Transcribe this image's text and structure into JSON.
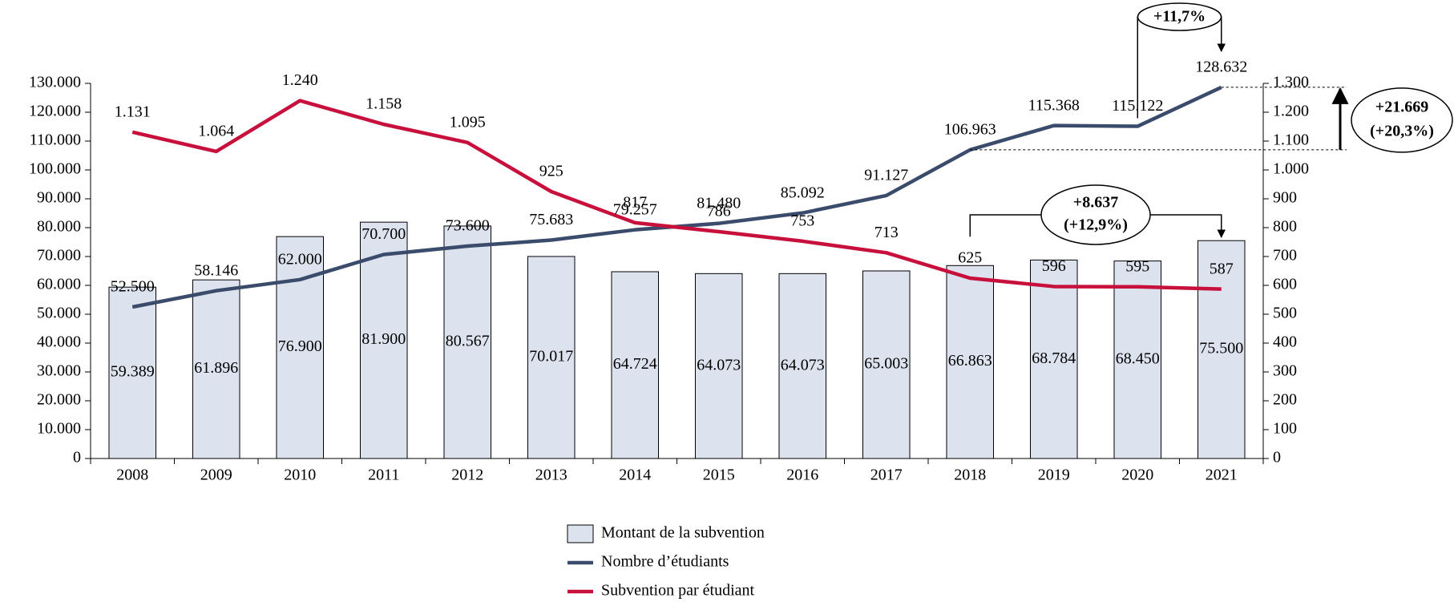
{
  "chart_data": {
    "type": "combo",
    "categories": [
      "2008",
      "2009",
      "2010",
      "2011",
      "2012",
      "2013",
      "2014",
      "2015",
      "2016",
      "2017",
      "2018",
      "2019",
      "2020",
      "2021"
    ],
    "series": [
      {
        "name": "Montant de la subvention",
        "type": "bar",
        "axis": "y",
        "color": "#dde3ee",
        "values": [
          59389,
          61896,
          76900,
          81900,
          80567,
          70017,
          64724,
          64073,
          64073,
          65003,
          66863,
          68784,
          68450,
          75500
        ],
        "value_labels": [
          "59.389",
          "61.896",
          "76.900",
          "81.900",
          "80.567",
          "70.017",
          "64.724",
          "64.073",
          "64.073",
          "65.003",
          "66.863",
          "68.784",
          "68.450",
          "75.500"
        ]
      },
      {
        "name": "Nombre d’étudiants",
        "type": "line",
        "axis": "y",
        "color": "#3b4b6b",
        "values": [
          52500,
          58146,
          62000,
          70700,
          73600,
          75683,
          79257,
          81480,
          85092,
          91127,
          106963,
          115368,
          115122,
          128632
        ],
        "value_labels": [
          "52.500",
          "58.146",
          "62.000",
          "70.700",
          "73.600",
          "75.683",
          "79.257",
          "81.480",
          "85.092",
          "91.127",
          "106.963",
          "115.368",
          "115.122",
          "128.632"
        ]
      },
      {
        "name": "Subvention par étudiant",
        "type": "line",
        "axis": "y2",
        "color": "#c8103d",
        "values": [
          1131,
          1064,
          1240,
          1158,
          1095,
          925,
          817,
          786,
          753,
          713,
          625,
          596,
          595,
          587
        ],
        "value_labels": [
          "1.131",
          "1.064",
          "1.240",
          "1.158",
          "1.095",
          "925",
          "817",
          "786",
          "753",
          "713",
          "625",
          "596",
          "595",
          "587"
        ]
      }
    ],
    "ylim": [
      0,
      130000
    ],
    "yticks": [
      0,
      {
        "value": 10000,
        "label": "10.000"
      },
      {
        "value": 20000,
        "label": "20.000"
      },
      {
        "value": 30000,
        "label": "30.000"
      },
      {
        "value": 40000,
        "label": "40.000"
      },
      {
        "value": 50000,
        "label": "50.000"
      },
      {
        "value": 60000,
        "label": "60.000"
      },
      {
        "value": 70000,
        "label": "70.000"
      },
      {
        "value": 80000,
        "label": "80.000"
      },
      {
        "value": 90000,
        "label": "90.000"
      },
      {
        "value": 100000,
        "label": "100.000"
      },
      {
        "value": 110000,
        "label": "110.000"
      },
      {
        "value": 120000,
        "label": "120.000"
      },
      {
        "value": 130000,
        "label": "130.000"
      }
    ],
    "y2lim": [
      0,
      1300
    ],
    "y2ticks": [
      0,
      100,
      200,
      300,
      400,
      500,
      600,
      700,
      800,
      900,
      {
        "value": 1000,
        "label": "1.000"
      },
      {
        "value": 1100,
        "label": "1.100"
      },
      {
        "value": 1200,
        "label": "1.200"
      },
      {
        "value": 1300,
        "label": "1.300"
      }
    ],
    "grid": false,
    "annotations": [
      "+11,7%",
      "+21.669",
      "(+20,3%)",
      "+8.637",
      "(+12,9%)"
    ]
  }
}
